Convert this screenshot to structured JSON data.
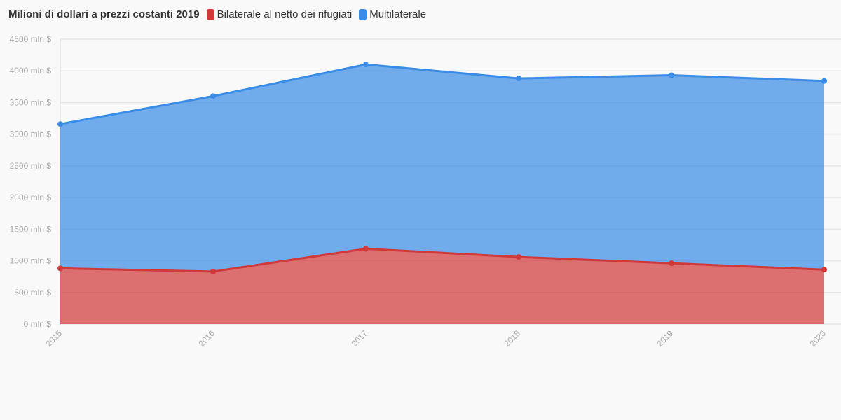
{
  "chart_data": {
    "type": "area",
    "stacked": true,
    "title": "Milioni di dollari a prezzi costanti 2019",
    "xlabel": "",
    "ylabel": "",
    "categories": [
      "2015",
      "2016",
      "2017",
      "2018",
      "2019",
      "2020"
    ],
    "series": [
      {
        "name": "Bilaterale al netto dei rifugiati",
        "color": "#d0393a",
        "values": [
          880,
          830,
          1190,
          1060,
          960,
          860
        ]
      },
      {
        "name": "Multilaterale",
        "color": "#3a8ce6",
        "values": [
          2280,
          2770,
          2910,
          2820,
          2970,
          2980
        ]
      }
    ],
    "y_ticks": [
      "0 mln $",
      "500 mln $",
      "1000 mln $",
      "1500 mln $",
      "2000 mln $",
      "2500 mln $",
      "3000 mln $",
      "3500 mln $",
      "4000 mln $",
      "4500 mln $"
    ],
    "ylim": [
      0,
      4500
    ],
    "grid": true,
    "legend_position": "top-left"
  }
}
